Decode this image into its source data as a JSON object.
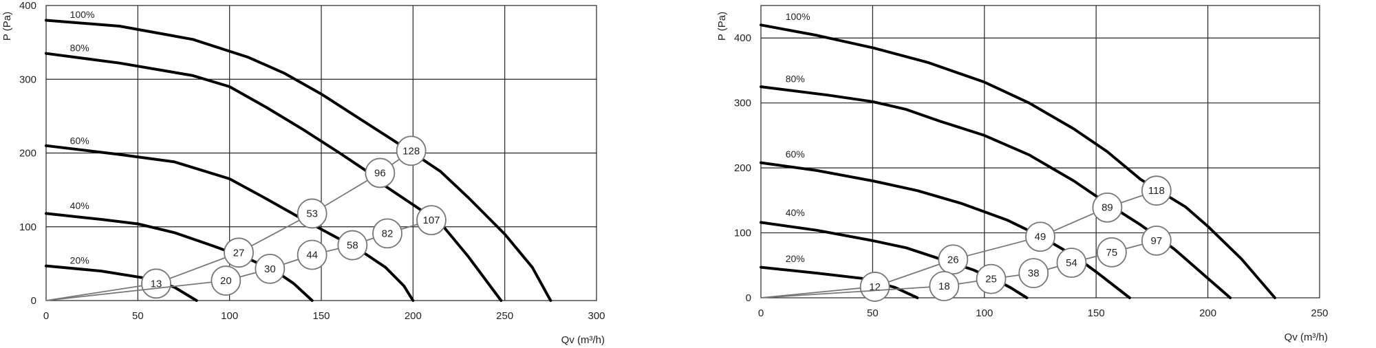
{
  "chart_data": [
    {
      "type": "line",
      "xlabel": "Qv (m³/h)",
      "ylabel": "P (Pa)",
      "xlim": [
        0,
        300
      ],
      "ylim": [
        0,
        400
      ],
      "xticks": [
        0,
        50,
        100,
        150,
        200,
        250,
        300
      ],
      "yticks": [
        0,
        100,
        200,
        300,
        400
      ],
      "grid": true,
      "curves": [
        {
          "label": "100%",
          "label_at": [
            13,
            383
          ],
          "points": [
            [
              0,
              380
            ],
            [
              40,
              372
            ],
            [
              80,
              354
            ],
            [
              110,
              330
            ],
            [
              130,
              308
            ],
            [
              150,
              280
            ],
            [
              180,
              232
            ],
            [
              200,
              200
            ],
            [
              215,
              175
            ],
            [
              230,
              140
            ],
            [
              250,
              90
            ],
            [
              265,
              45
            ],
            [
              275,
              0
            ]
          ]
        },
        {
          "label": "80%",
          "label_at": [
            13,
            338
          ],
          "points": [
            [
              0,
              335
            ],
            [
              40,
              322
            ],
            [
              80,
              305
            ],
            [
              100,
              290
            ],
            [
              120,
              262
            ],
            [
              140,
              232
            ],
            [
              160,
              200
            ],
            [
              175,
              175
            ],
            [
              185,
              155
            ],
            [
              200,
              130
            ],
            [
              215,
              105
            ],
            [
              230,
              60
            ],
            [
              248,
              0
            ]
          ]
        },
        {
          "label": "60%",
          "label_at": [
            13,
            212
          ],
          "points": [
            [
              0,
              210
            ],
            [
              40,
              198
            ],
            [
              70,
              188
            ],
            [
              100,
              165
            ],
            [
              120,
              138
            ],
            [
              140,
              110
            ],
            [
              155,
              90
            ],
            [
              170,
              70
            ],
            [
              185,
              45
            ],
            [
              195,
              20
            ],
            [
              200,
              0
            ]
          ]
        },
        {
          "label": "40%",
          "label_at": [
            13,
            124
          ],
          "points": [
            [
              0,
              118
            ],
            [
              30,
              110
            ],
            [
              50,
              104
            ],
            [
              70,
              92
            ],
            [
              90,
              75
            ],
            [
              110,
              57
            ],
            [
              125,
              40
            ],
            [
              135,
              23
            ],
            [
              145,
              0
            ]
          ]
        },
        {
          "label": "20%",
          "label_at": [
            13,
            50
          ],
          "points": [
            [
              0,
              47
            ],
            [
              30,
              40
            ],
            [
              55,
              30
            ],
            [
              70,
              18
            ],
            [
              82,
              0
            ]
          ]
        }
      ],
      "series": [
        {
          "points": [
            [
              0,
              0
            ],
            [
              60,
              23
            ],
            [
              105,
              65
            ],
            [
              145,
              118
            ],
            [
              182,
              173
            ],
            [
              199,
              203
            ]
          ],
          "labels": [
            "",
            "13",
            "27",
            "53",
            "96",
            "128"
          ]
        },
        {
          "points": [
            [
              0,
              0
            ],
            [
              98,
              27
            ],
            [
              122,
              43
            ],
            [
              145,
              62
            ],
            [
              167,
              75
            ],
            [
              186,
              91
            ],
            [
              210,
              109
            ]
          ],
          "labels": [
            "",
            "20",
            "30",
            "44",
            "58",
            "82",
            "107"
          ]
        }
      ]
    },
    {
      "type": "line",
      "xlabel": "Qv (m³/h)",
      "ylabel": "P (Pa)",
      "xlim": [
        0,
        250
      ],
      "ylim": [
        0,
        450
      ],
      "xticks": [
        0,
        50,
        100,
        150,
        200,
        250
      ],
      "yticks": [
        0,
        100,
        200,
        300,
        400
      ],
      "grid": true,
      "curves": [
        {
          "label": "100%",
          "label_at": [
            11,
            428
          ],
          "points": [
            [
              0,
              420
            ],
            [
              25,
              404
            ],
            [
              50,
              385
            ],
            [
              75,
              362
            ],
            [
              100,
              332
            ],
            [
              120,
              300
            ],
            [
              140,
              260
            ],
            [
              155,
              225
            ],
            [
              170,
              182
            ],
            [
              190,
              140
            ],
            [
              200,
              110
            ],
            [
              215,
              60
            ],
            [
              230,
              0
            ]
          ]
        },
        {
          "label": "80%",
          "label_at": [
            11,
            332
          ],
          "points": [
            [
              0,
              325
            ],
            [
              30,
              312
            ],
            [
              50,
              302
            ],
            [
              65,
              290
            ],
            [
              80,
              272
            ],
            [
              100,
              250
            ],
            [
              120,
              220
            ],
            [
              140,
              180
            ],
            [
              155,
              145
            ],
            [
              170,
              112
            ],
            [
              185,
              75
            ],
            [
              200,
              30
            ],
            [
              210,
              0
            ]
          ]
        },
        {
          "label": "60%",
          "label_at": [
            11,
            216
          ],
          "points": [
            [
              0,
              208
            ],
            [
              25,
              196
            ],
            [
              50,
              180
            ],
            [
              70,
              165
            ],
            [
              90,
              145
            ],
            [
              110,
              120
            ],
            [
              125,
              95
            ],
            [
              140,
              65
            ],
            [
              150,
              40
            ],
            [
              165,
              0
            ]
          ]
        },
        {
          "label": "40%",
          "label_at": [
            11,
            126
          ],
          "points": [
            [
              0,
              116
            ],
            [
              25,
              104
            ],
            [
              50,
              88
            ],
            [
              65,
              77
            ],
            [
              80,
              60
            ],
            [
              95,
              43
            ],
            [
              105,
              28
            ],
            [
              112,
              15
            ],
            [
              119,
              0
            ]
          ]
        },
        {
          "label": "20%",
          "label_at": [
            11,
            55
          ],
          "points": [
            [
              0,
              47
            ],
            [
              25,
              38
            ],
            [
              45,
              30
            ],
            [
              60,
              16
            ],
            [
              70,
              0
            ]
          ]
        }
      ],
      "series": [
        {
          "points": [
            [
              0,
              0
            ],
            [
              51,
              17
            ],
            [
              86,
              59
            ],
            [
              125,
              94
            ],
            [
              155,
              139
            ],
            [
              177,
              165
            ]
          ],
          "labels": [
            "",
            "12",
            "26",
            "49",
            "89",
            "118"
          ]
        },
        {
          "points": [
            [
              0,
              0
            ],
            [
              82,
              18
            ],
            [
              103,
              29
            ],
            [
              122,
              38
            ],
            [
              139,
              54
            ],
            [
              157,
              70
            ],
            [
              177,
              88
            ]
          ],
          "labels": [
            "",
            "18",
            "25",
            "38",
            "54",
            "75",
            "97"
          ]
        }
      ]
    }
  ]
}
